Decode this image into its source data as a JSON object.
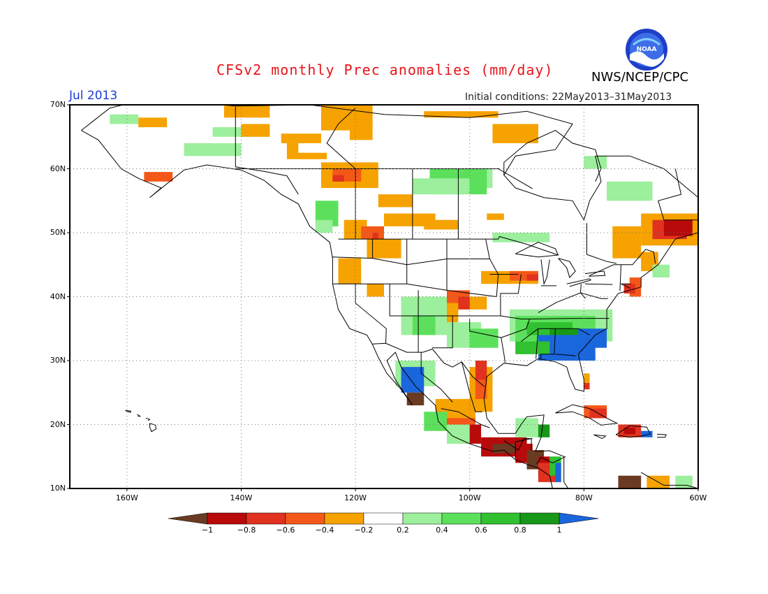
{
  "header": {
    "title": "CFSv2 monthly Prec anomalies (mm/day)",
    "agency": "NWS/NCEP/CPC",
    "month": "Jul 2013",
    "initial_conditions": "Initial conditions: 22May2013–31May2013",
    "logo_text": "NOAA"
  },
  "map": {
    "region": "North America",
    "lat_labels": [
      "70N",
      "60N",
      "50N",
      "40N",
      "30N",
      "20N",
      "10N"
    ],
    "lon_labels": [
      "160W",
      "140W",
      "120W",
      "100W",
      "80W",
      "60W"
    ],
    "grid": "dotted"
  },
  "legend": {
    "labels": [
      "−1",
      "−0.8",
      "−0.6",
      "−0.4",
      "−0.2",
      "0.2",
      "0.4",
      "0.6",
      "0.8",
      "1"
    ],
    "colors": [
      "#6b3a22",
      "#b80a0a",
      "#e0321e",
      "#f45818",
      "#f6a200",
      "#ffffff",
      "#9cef9c",
      "#5ce05c",
      "#30c030",
      "#189818",
      "#1a66dd"
    ]
  },
  "colors": {
    "title": "#e8141a",
    "month": "#1a3ad8",
    "land_border": "#000000"
  }
}
